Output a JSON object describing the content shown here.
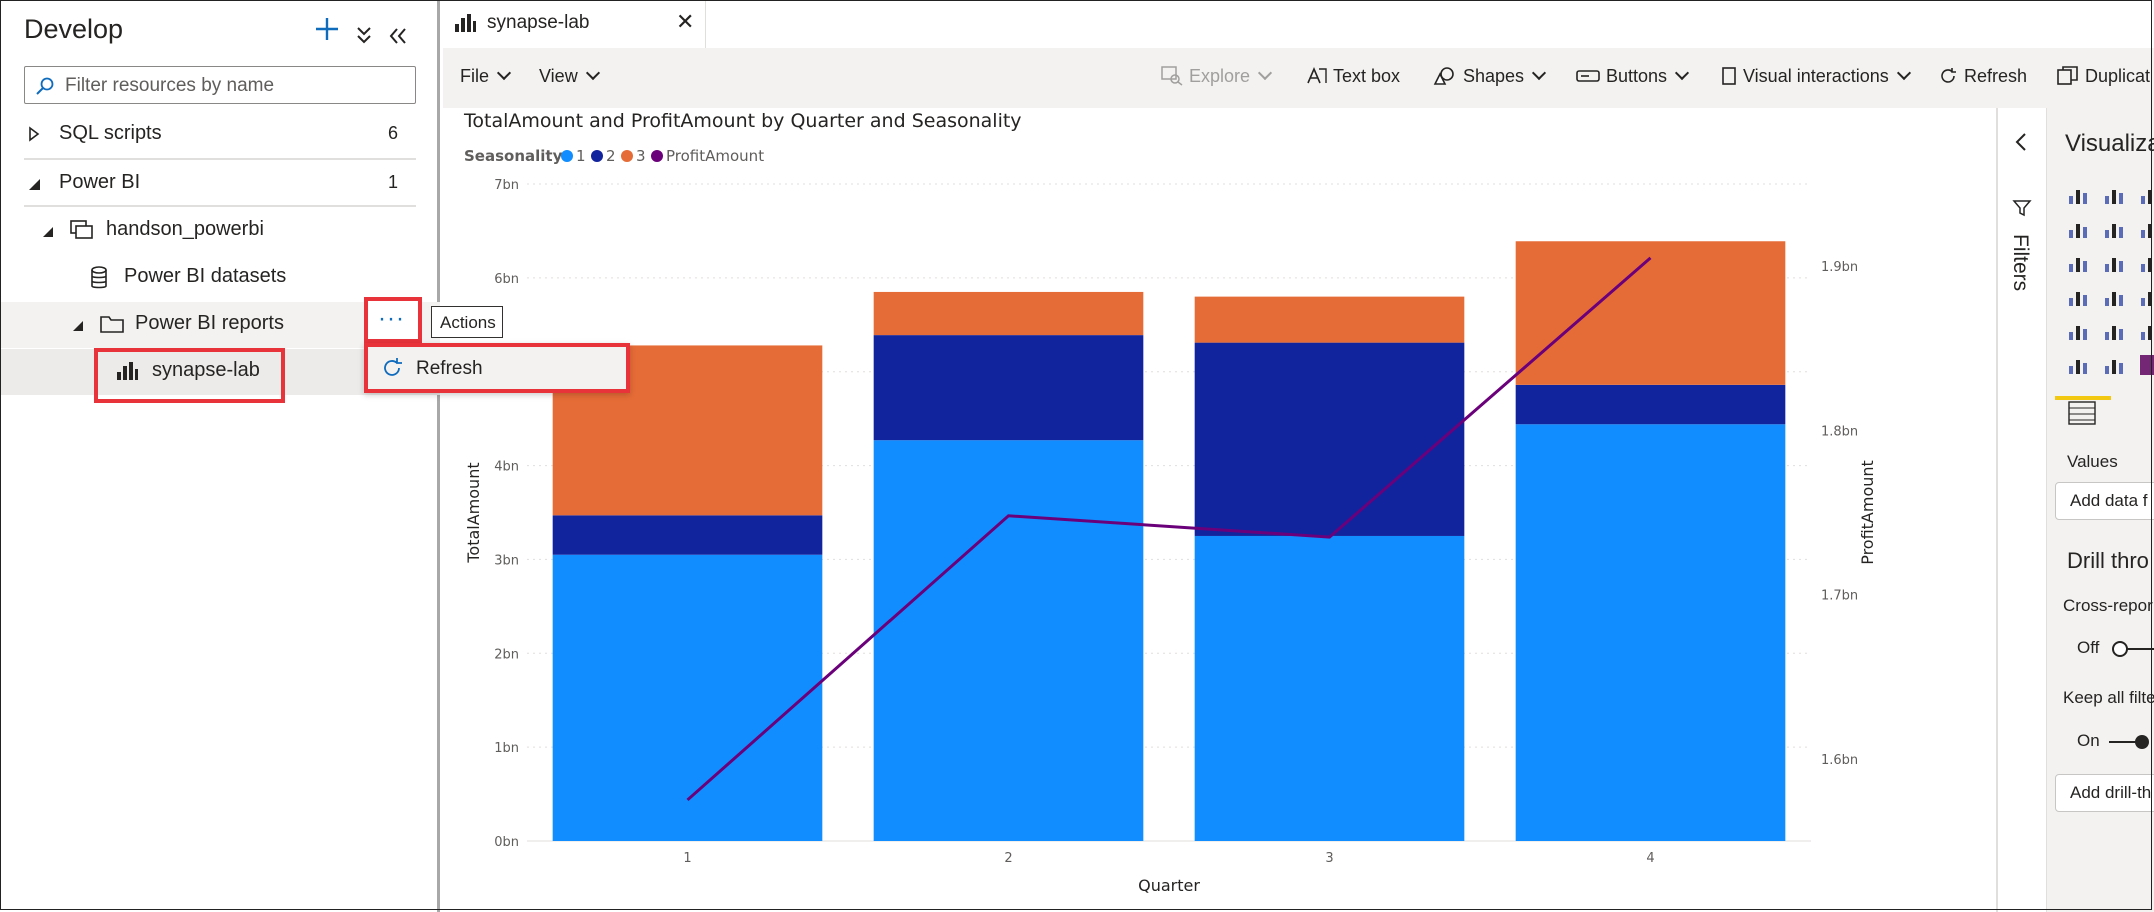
{
  "develop": {
    "title": "Develop",
    "filter_placeholder": "Filter resources by name",
    "sections": [
      {
        "label": "SQL scripts",
        "count": "6"
      },
      {
        "label": "Power BI",
        "count": "1"
      }
    ],
    "workspace": "handson_powerbi",
    "datasets": "Power BI datasets",
    "reports": "Power BI reports",
    "report_item": "synapse-lab"
  },
  "actions": {
    "more_glyph": "···",
    "tooltip": "Actions",
    "menu_refresh": "Refresh"
  },
  "tab": {
    "label": "synapse-lab",
    "close": "✕"
  },
  "toolbar": {
    "file": "File",
    "view": "View",
    "explore": "Explore",
    "textbox": "Text box",
    "shapes": "Shapes",
    "buttons": "Buttons",
    "visual_interactions": "Visual interactions",
    "refresh": "Refresh",
    "duplicate": "Duplicat"
  },
  "right_pane": {
    "filters": "Filters",
    "visualizations": "Visualiza",
    "values": "Values",
    "add_data": "Add data f",
    "drill": "Drill thro",
    "cross_report": "Cross-repor",
    "off": "Off",
    "keep_filters": "Keep all filte",
    "on": "On",
    "add_drill": "Add drill-th"
  },
  "colors": {
    "s1": "#118dff",
    "s2": "#12239e",
    "s3": "#e66c37",
    "line": "#6b007b",
    "accent_red": "#e8333b",
    "brand_blue": "#0f6cbd"
  },
  "chart_data": {
    "type": "bar",
    "stacked": true,
    "title": "TotalAmount and ProfitAmount by Quarter and Seasonality",
    "legend_title": "Seasonality",
    "legend": [
      "1",
      "2",
      "3",
      "ProfitAmount"
    ],
    "xlabel": "Quarter",
    "ylabel": "TotalAmount",
    "y2label": "ProfitAmount",
    "categories": [
      "1",
      "2",
      "3",
      "4"
    ],
    "series": [
      {
        "name": "1",
        "values": [
          3.05,
          4.27,
          3.25,
          4.44
        ]
      },
      {
        "name": "2",
        "values": [
          0.42,
          1.12,
          2.06,
          0.42
        ]
      },
      {
        "name": "3",
        "values": [
          1.81,
          0.46,
          0.49,
          1.53
        ]
      }
    ],
    "line_series": {
      "name": "ProfitAmount",
      "values": [
        1.575,
        1.748,
        1.735,
        1.905
      ]
    },
    "ylim": [
      0,
      7
    ],
    "y_ticks": [
      "0bn",
      "1bn",
      "2bn",
      "3bn",
      "4bn",
      "5bn",
      "6bn",
      "7bn"
    ],
    "y2lim": [
      1.55,
      1.95
    ],
    "y2_ticks": [
      "1.6bn",
      "1.7bn",
      "1.8bn",
      "1.9bn"
    ],
    "grid": true,
    "legend_position": "top-left"
  }
}
